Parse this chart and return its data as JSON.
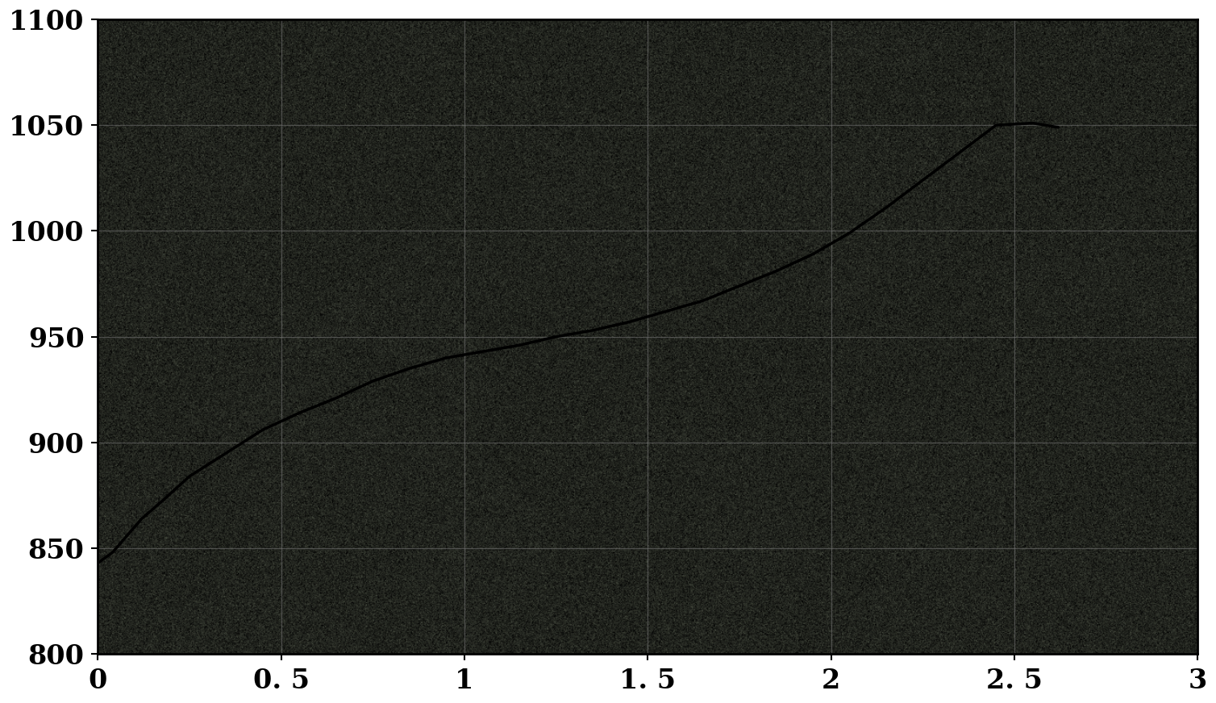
{
  "x_min": 0,
  "x_max": 3,
  "y_min": 800,
  "y_max": 1100,
  "x_ticks": [
    0,
    0.5,
    1,
    1.5,
    2,
    2.5,
    3
  ],
  "y_ticks": [
    800,
    850,
    900,
    950,
    1000,
    1050,
    1100
  ],
  "x_tick_labels": [
    "0",
    "0. 5",
    "1",
    "1. 5",
    "2",
    "2. 5",
    "3"
  ],
  "y_tick_labels": [
    "800",
    "850",
    "900",
    "950",
    "1000",
    "1050",
    "1100"
  ],
  "figure_background": "#ffffff",
  "line_color": "#000000",
  "line_width": 2.5,
  "tick_fontsize": 24,
  "tick_fontweight": "bold",
  "noise_mean": 80,
  "noise_std": 30,
  "grid_alpha": 0.35,
  "curve_x": [
    0.0,
    0.04,
    0.08,
    0.12,
    0.18,
    0.25,
    0.35,
    0.45,
    0.55,
    0.65,
    0.75,
    0.85,
    0.95,
    1.05,
    1.15,
    1.25,
    1.35,
    1.45,
    1.55,
    1.65,
    1.75,
    1.85,
    1.95,
    2.05,
    2.15,
    2.25,
    2.35,
    2.45,
    2.55,
    2.62
  ],
  "curve_y": [
    843,
    848,
    856,
    864,
    873,
    884,
    895,
    906,
    914,
    921,
    929,
    935,
    940,
    943,
    946,
    950,
    953,
    957,
    962,
    967,
    974,
    981,
    989,
    999,
    1011,
    1024,
    1037,
    1050,
    1051,
    1049
  ]
}
